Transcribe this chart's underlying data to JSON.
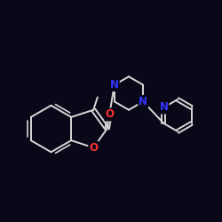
{
  "bg_color": "#080818",
  "bond_color": "#d8d8d8",
  "atom_colors": {
    "O": "#ff3333",
    "N": "#3333ff",
    "C": "#d8d8d8"
  },
  "bond_width": 1.4,
  "font_size": 8.5,
  "figsize": [
    2.5,
    2.5
  ],
  "dpi": 100,
  "xlim": [
    0,
    10
  ],
  "ylim": [
    0,
    10
  ]
}
